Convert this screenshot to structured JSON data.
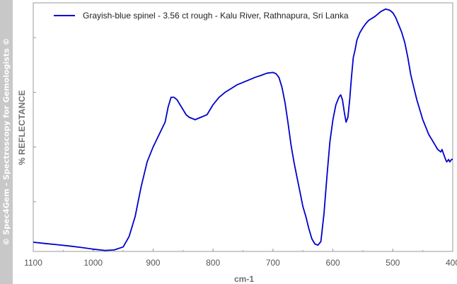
{
  "watermark": "© Spec4Gem - Spectroscopy for Gemologists ©",
  "chart_data": {
    "type": "line",
    "title": "",
    "xlabel": "cm-1",
    "ylabel": "% REFLECTANCE",
    "xlim": [
      1100,
      400
    ],
    "ylim": [
      0,
      100
    ],
    "x_reversed": true,
    "x_ticks": [
      "1100",
      "1000",
      "900",
      "800",
      "700",
      "600",
      "500",
      "400"
    ],
    "grid": false,
    "legend_position": "top-left",
    "series": [
      {
        "name": "Grayish-blue spinel - 3.56 ct rough - Kalu River, Rathnapura, Sri Lanka",
        "color": "#0000cc",
        "x": [
          1100,
          1080,
          1060,
          1040,
          1020,
          1000,
          980,
          965,
          950,
          940,
          930,
          920,
          910,
          900,
          890,
          880,
          875,
          870,
          865,
          860,
          855,
          850,
          845,
          840,
          830,
          820,
          810,
          800,
          790,
          780,
          770,
          760,
          750,
          740,
          730,
          720,
          710,
          700,
          695,
          690,
          685,
          680,
          675,
          670,
          665,
          660,
          655,
          650,
          645,
          640,
          635,
          630,
          625,
          620,
          615,
          610,
          605,
          600,
          595,
          590,
          587,
          584,
          581,
          578,
          575,
          572,
          569,
          566,
          563,
          560,
          555,
          550,
          545,
          540,
          530,
          520,
          512,
          505,
          500,
          495,
          490,
          485,
          480,
          475,
          470,
          465,
          460,
          455,
          450,
          445,
          440,
          435,
          430,
          425,
          420,
          418,
          415,
          412,
          410,
          407,
          405,
          402,
          400
        ],
        "y": [
          3.7,
          3.2,
          2.7,
          2.2,
          1.6,
          0.9,
          0.4,
          0.6,
          1.8,
          6,
          14,
          26,
          36,
          42,
          47,
          52,
          58,
          62,
          62,
          61,
          59,
          57,
          55,
          54,
          53,
          54,
          55,
          59,
          62,
          64,
          65.5,
          67,
          68,
          69,
          70,
          70.8,
          71.7,
          72,
          71.5,
          70,
          66,
          60,
          52,
          43,
          36,
          30,
          24,
          18,
          14,
          9,
          5,
          3,
          2.5,
          4,
          15,
          30,
          44,
          53,
          59,
          62,
          63,
          61,
          56,
          52,
          54,
          61,
          70,
          78,
          81,
          85,
          88,
          90,
          91.7,
          93,
          94.5,
          96.5,
          97.5,
          97,
          96,
          94,
          91,
          88,
          84,
          78,
          71,
          66,
          61,
          57,
          53,
          50,
          47,
          45,
          43,
          41,
          40,
          41,
          39,
          37,
          36,
          37,
          36,
          37,
          37
        ]
      }
    ]
  }
}
